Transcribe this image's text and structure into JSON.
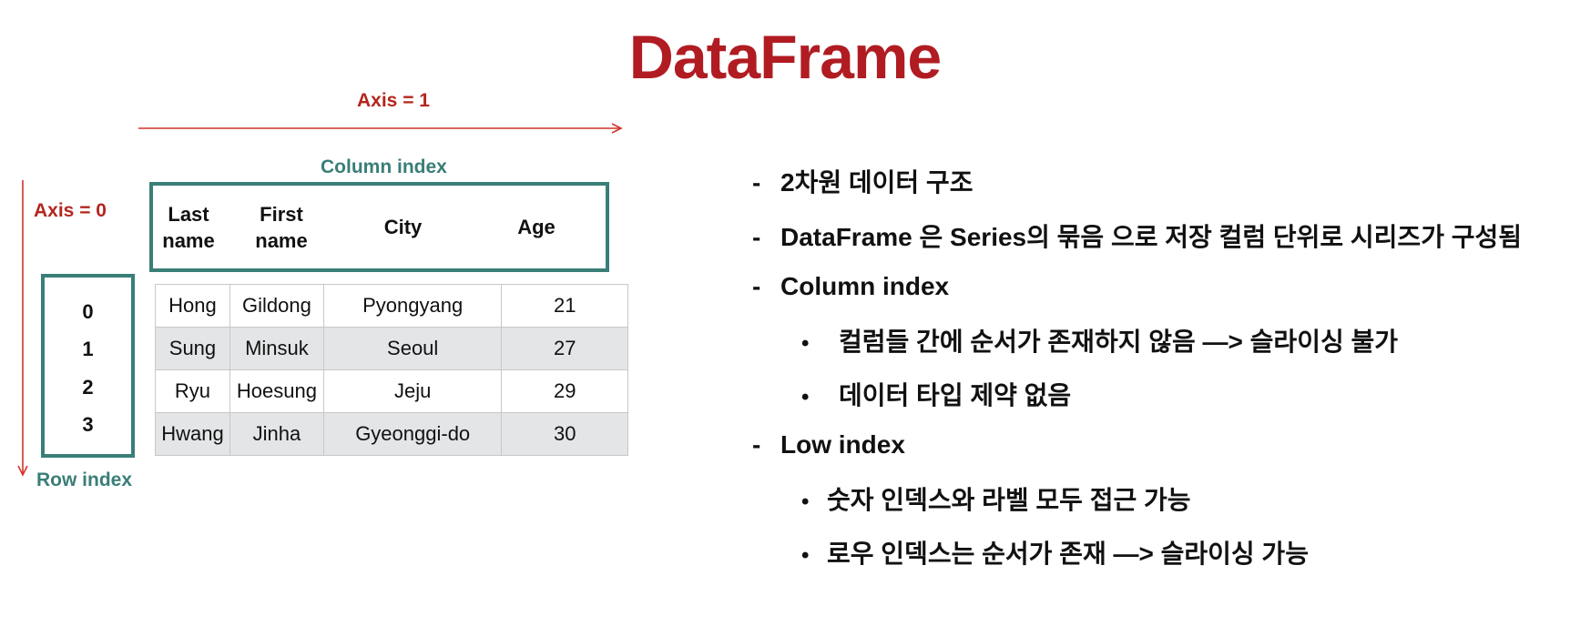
{
  "title": "DataFrame",
  "axis1_label": "Axis = 1",
  "axis0_label": "Axis = 0",
  "column_index_label": "Column index",
  "row_index_label": "Row index",
  "columns": [
    "Last\nname",
    "First\nname",
    "City",
    "Age"
  ],
  "row_indices": [
    "0",
    "1",
    "2",
    "3"
  ],
  "rows": [
    [
      "Hong",
      "Gildong",
      "Pyongyang",
      "21"
    ],
    [
      "Sung",
      "Minsuk",
      "Seoul",
      "27"
    ],
    [
      "Ryu",
      "Hoesung",
      "Jeju",
      "29"
    ],
    [
      "Hwang",
      "Jinha",
      "Gyeonggi-do",
      "30"
    ]
  ],
  "bullets": {
    "dash": "-",
    "dot": "•",
    "b1": "2차원 데이터 구조",
    "b2": "DataFrame 은 Series의 묶음 으로 저장 컬럼 단위로 시리즈가 구성됨",
    "b3": "Column index",
    "b3a": "컬럼들 간에 순서가 존재하지 않음  —> 슬라이싱 불가",
    "b3b": "데이터 타입 제약 없음",
    "b4": "Low index",
    "b4a": "숫자 인덱스와 라벨 모두 접근 가능",
    "b4b": "로우 인덱스는 순서가 존재  —> 슬라이싱 가능"
  },
  "colors": {
    "title": "#b01c22",
    "axis": "#b3261e",
    "index": "#3a7e78",
    "row_shade": "#e4e5e7"
  }
}
